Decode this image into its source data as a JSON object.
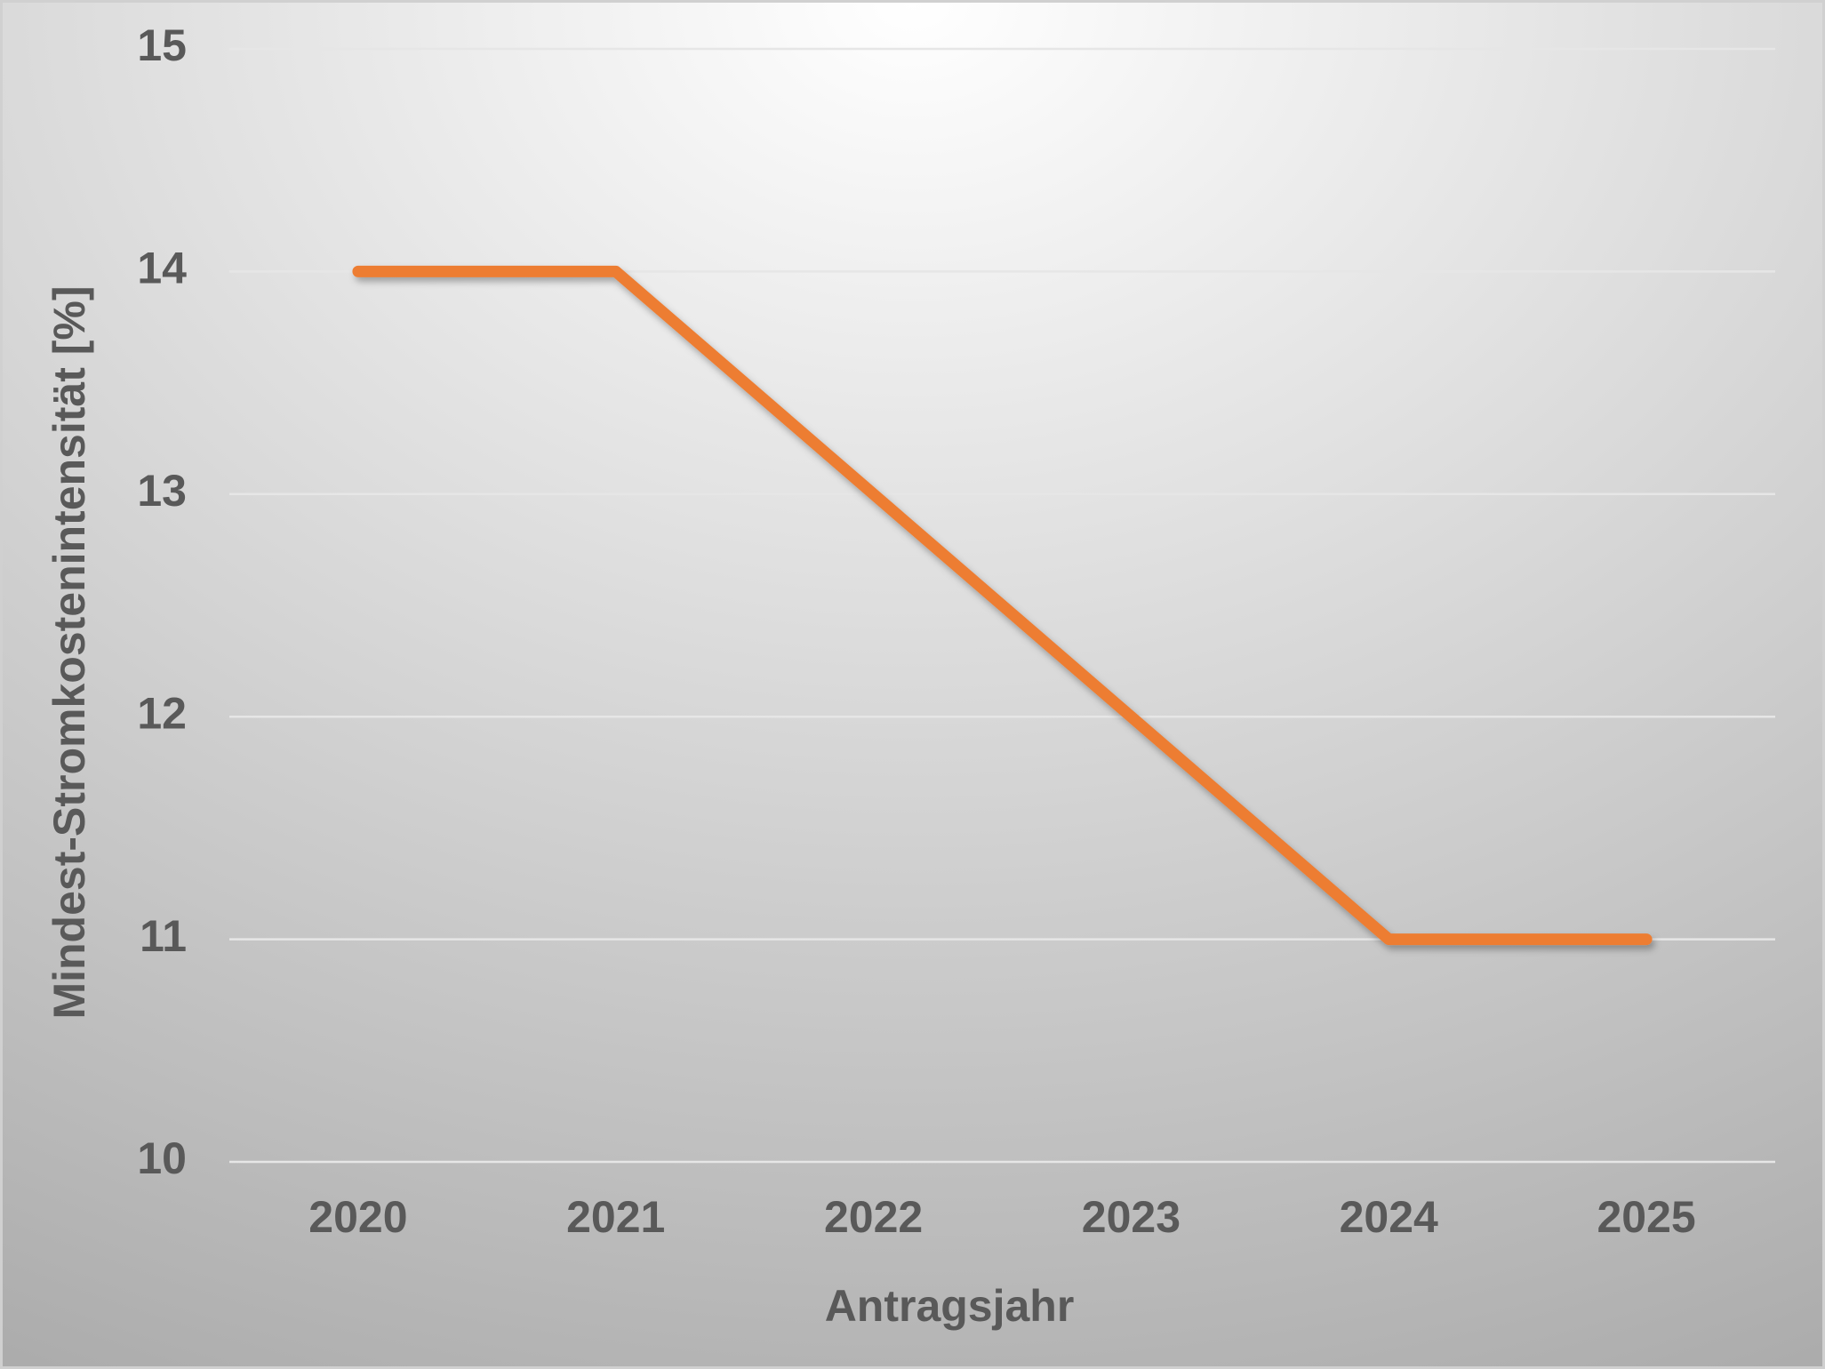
{
  "chart_data": {
    "type": "line",
    "x_label": "Antragsjahr",
    "y_label": "Mindest-Stromkostenintensität [%]",
    "categories": [
      "2020",
      "2021",
      "2022",
      "2023",
      "2024",
      "2025"
    ],
    "values": [
      14,
      14,
      13,
      12,
      11,
      11
    ],
    "color": "#ed7d31",
    "ylim": [
      10,
      15
    ],
    "yticks": [
      10,
      11,
      12,
      13,
      14,
      15
    ],
    "grid": true
  }
}
